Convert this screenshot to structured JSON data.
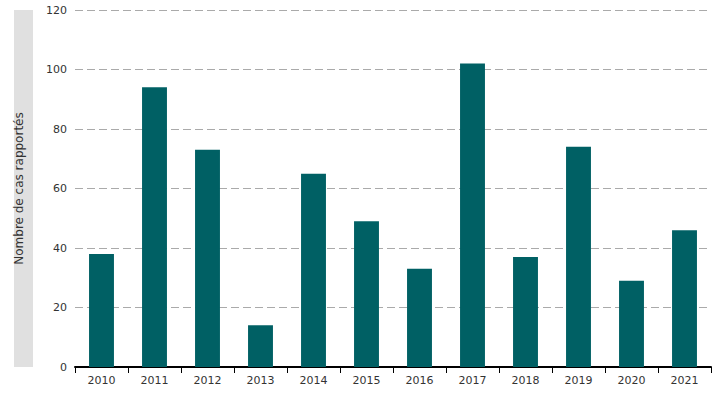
{
  "chart_data": {
    "type": "bar",
    "y_label": "Nombre de cas rapportés",
    "categories": [
      "2010",
      "2011",
      "2012",
      "2013",
      "2014",
      "2015",
      "2016",
      "2017",
      "2018",
      "2019",
      "2020",
      "2021"
    ],
    "values": [
      38,
      94,
      73,
      14,
      65,
      49,
      33,
      102,
      37,
      74,
      29,
      46
    ],
    "color": "#006064",
    "ylim": [
      0,
      120
    ],
    "yticks": [
      0,
      20,
      40,
      60,
      80,
      100,
      120
    ],
    "grid": true
  }
}
